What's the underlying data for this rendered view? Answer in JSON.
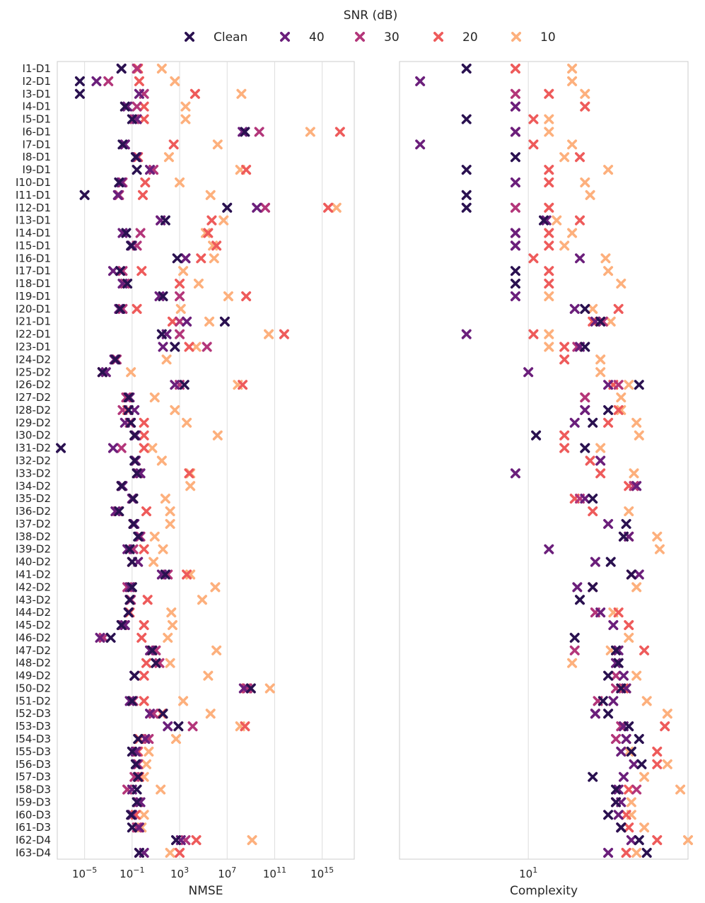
{
  "chart_data": {
    "type": "scatter",
    "legend": {
      "title": "SNR (dB)",
      "placement": "top-center",
      "entries": [
        {
          "name": "Clean",
          "color": "#2a1150"
        },
        {
          "name": "40",
          "color": "#6b1f7b"
        },
        {
          "name": "30",
          "color": "#b3367a"
        },
        {
          "name": "20",
          "color": "#ee5b5b"
        },
        {
          "name": "10",
          "color": "#fdb07d"
        }
      ]
    },
    "marker": "x",
    "categories": [
      "I1-D1",
      "I2-D1",
      "I3-D1",
      "I4-D1",
      "I5-D1",
      "I6-D1",
      "I7-D1",
      "I8-D1",
      "I9-D1",
      "I10-D1",
      "I11-D1",
      "I12-D1",
      "I13-D1",
      "I14-D1",
      "I15-D1",
      "I16-D1",
      "I17-D1",
      "I18-D1",
      "I19-D1",
      "I20-D1",
      "I21-D1",
      "I22-D1",
      "I23-D1",
      "I24-D2",
      "I25-D2",
      "I26-D2",
      "I27-D2",
      "I28-D2",
      "I29-D2",
      "I30-D2",
      "I31-D2",
      "I32-D2",
      "I33-D2",
      "I34-D2",
      "I35-D2",
      "I36-D2",
      "I37-D2",
      "I38-D2",
      "I39-D2",
      "I40-D2",
      "I41-D2",
      "I42-D2",
      "I43-D2",
      "I44-D2",
      "I45-D2",
      "I46-D2",
      "I47-D2",
      "I48-D2",
      "I49-D2",
      "I50-D2",
      "I51-D2",
      "I52-D3",
      "I53-D3",
      "I54-D3",
      "I55-D3",
      "I56-D3",
      "I57-D3",
      "I58-D3",
      "I59-D3",
      "I60-D3",
      "I61-D3",
      "I62-D4",
      "I63-D4"
    ],
    "subplots": [
      {
        "xlabel": "NMSE",
        "xscale": "log",
        "xlim_log10": [
          -7.3,
          17.7
        ],
        "grid": "vertical",
        "xticks": [
          {
            "base": "10",
            "exp": "−5",
            "value": -5
          },
          {
            "base": "10",
            "exp": "−1",
            "value": -1
          },
          {
            "base": "10",
            "exp": "3",
            "value": 3
          },
          {
            "base": "10",
            "exp": "7",
            "value": 7
          },
          {
            "base": "10",
            "exp": "11",
            "value": 11
          },
          {
            "base": "10",
            "exp": "15",
            "value": 15
          }
        ],
        "series_log10": {
          "Clean": [
            -1.9,
            -5.4,
            -5.4,
            -1.6,
            -1.0,
            8.5,
            -1.8,
            -0.7,
            -0.6,
            -2.1,
            -5.0,
            7.0,
            1.8,
            -1.5,
            -1.1,
            2.8,
            -2.0,
            -1.4,
            1.6,
            -2.0,
            6.8,
            1.5,
            2.6,
            -2.4,
            -3.5,
            3.4,
            -1.3,
            -1.3,
            -1.1,
            -0.8,
            -7.0,
            -0.8,
            -0.6,
            -1.9,
            -0.9,
            -2.1,
            -0.9,
            -0.5,
            -1.2,
            -1.0,
            1.8,
            -1.0,
            -1.2,
            -1.3,
            -1.9,
            -2.8,
            0.7,
            1.0,
            -0.8,
            9.0,
            -1.0,
            1.6,
            2.9,
            -0.5,
            -1.0,
            -0.7,
            -0.5,
            -0.6,
            -0.6,
            -1.1,
            -1.0,
            2.7,
            -0.4
          ],
          "40": [
            -1.9,
            -4.0,
            -0.4,
            -1.4,
            -0.6,
            8.3,
            -1.6,
            -0.6,
            0.5,
            -1.9,
            -2.2,
            9.5,
            1.4,
            -1.8,
            -1.0,
            3.5,
            -2.6,
            -1.8,
            1.3,
            -2.1,
            3.6,
            1.9,
            1.6,
            -2.5,
            -3.2,
            2.6,
            -1.2,
            -0.8,
            -1.6,
            -0.7,
            -2.6,
            -0.7,
            -0.3,
            -1.8,
            -1.0,
            -2.4,
            -0.8,
            -0.4,
            -1.4,
            -0.5,
            1.5,
            -1.2,
            -1.2,
            -1.3,
            -1.6,
            -3.7,
            0.5,
            1.0,
            -0.8,
            8.4,
            -1.2,
            0.5,
            2.0,
            0.1,
            -0.7,
            -0.6,
            -0.5,
            -1.0,
            -0.3,
            -1.0,
            -0.4,
            3.1,
            0.0
          ],
          "30": [
            -0.6,
            -3.0,
            0.0,
            -0.6,
            -0.8,
            9.7,
            -1.6,
            -0.6,
            0.8,
            -1.8,
            -2.1,
            10.2,
            1.4,
            -0.3,
            -0.6,
            3.5,
            -1.8,
            -1.6,
            3.0,
            -1.8,
            3.0,
            3.0,
            5.3,
            -2.3,
            -3.5,
            3.0,
            -1.5,
            -1.8,
            -1.2,
            -0.8,
            -1.9,
            -0.7,
            -0.5,
            -1.9,
            -1.0,
            -2.2,
            -0.9,
            -0.3,
            -0.9,
            -1.0,
            2.0,
            -1.4,
            -1.1,
            -1.3,
            -1.8,
            -3.4,
            1.0,
            1.3,
            -0.8,
            8.7,
            -0.9,
            0.8,
            4.1,
            0.4,
            -0.6,
            -0.5,
            -0.8,
            -1.4,
            -0.5,
            -1.0,
            -0.6,
            3.5,
            -0.4
          ],
          "20": [
            -0.5,
            -0.4,
            4.3,
            0.0,
            0.0,
            16.5,
            2.5,
            -0.5,
            8.6,
            0.1,
            -0.1,
            15.5,
            5.7,
            5.4,
            6.1,
            4.8,
            -0.2,
            3.0,
            8.6,
            -0.6,
            2.4,
            11.8,
            3.8,
            -2.4,
            -3.5,
            8.3,
            -1.4,
            -1.4,
            0.0,
            0.0,
            0.0,
            -0.7,
            3.8,
            -1.9,
            -0.9,
            0.2,
            -0.9,
            -0.4,
            0.0,
            -1.0,
            3.6,
            -1.1,
            0.3,
            -1.2,
            0.0,
            -0.2,
            0.6,
            0.2,
            0.0,
            8.6,
            0.0,
            1.5,
            8.5,
            -0.4,
            -0.5,
            -0.5,
            -0.4,
            -1.4,
            -0.5,
            -0.7,
            -0.5,
            4.4,
            3.0
          ],
          "10": [
            1.5,
            2.6,
            8.2,
            3.5,
            3.5,
            14.0,
            6.2,
            2.1,
            8.1,
            3.0,
            5.6,
            16.2,
            6.7,
            5.2,
            5.8,
            5.9,
            3.3,
            4.6,
            7.1,
            3.1,
            5.5,
            10.5,
            4.4,
            1.9,
            -1.1,
            7.9,
            0.9,
            2.6,
            3.6,
            6.2,
            0.7,
            1.5,
            3.9,
            3.9,
            1.8,
            2.2,
            2.2,
            0.9,
            1.6,
            0.8,
            3.9,
            6.0,
            4.9,
            2.3,
            2.4,
            2.0,
            6.1,
            2.2,
            5.4,
            10.6,
            3.3,
            5.6,
            8.1,
            2.7,
            0.4,
            0.2,
            0.0,
            1.4,
            -0.5,
            0.0,
            -0.2,
            9.1,
            2.2
          ]
        }
      },
      {
        "xlabel": "Complexity",
        "xscale": "log",
        "xlim_log10": [
          0.5,
          1.62
        ],
        "grid": "vertical",
        "xticks": [
          {
            "base": "10",
            "exp": "1",
            "value": 1
          }
        ],
        "series_log10": {
          "Clean": [
            0.76,
            null,
            null,
            null,
            0.76,
            null,
            null,
            0.95,
            0.76,
            null,
            0.76,
            0.76,
            1.06,
            null,
            null,
            null,
            0.95,
            0.95,
            null,
            1.22,
            1.28,
            null,
            1.22,
            null,
            null,
            1.43,
            null,
            1.31,
            1.25,
            1.03,
            1.22,
            null,
            null,
            null,
            1.25,
            null,
            1.38,
            1.37,
            null,
            1.32,
            1.4,
            1.25,
            1.2,
            null,
            null,
            1.18,
            1.34,
            1.35,
            1.31,
            1.36,
            1.29,
            1.31,
            1.39,
            1.43,
            1.4,
            1.44,
            1.25,
            1.34,
            1.34,
            1.31,
            1.36,
            1.43,
            1.46
          ],
          "40": [
            null,
            0.58,
            null,
            0.95,
            null,
            0.95,
            0.58,
            null,
            null,
            0.95,
            null,
            null,
            1.07,
            0.95,
            0.95,
            1.2,
            null,
            null,
            0.95,
            1.18,
            1.26,
            0.76,
            1.2,
            null,
            1.0,
            1.31,
            null,
            1.22,
            1.18,
            null,
            null,
            1.28,
            0.95,
            1.42,
            1.22,
            null,
            1.31,
            1.39,
            1.08,
            1.26,
            1.43,
            1.19,
            null,
            1.28,
            1.33,
            null,
            1.35,
            1.34,
            1.37,
            1.38,
            1.33,
            1.26,
            1.37,
            1.38,
            1.36,
            1.41,
            1.37,
            1.35,
            1.36,
            1.35,
            1.36,
            1.4,
            1.31
          ],
          "30": [
            null,
            null,
            0.95,
            0.95,
            null,
            0.95,
            null,
            null,
            null,
            null,
            null,
            0.95,
            null,
            0.95,
            0.95,
            null,
            null,
            null,
            null,
            null,
            1.29,
            null,
            1.19,
            null,
            null,
            1.35,
            1.22,
            1.22,
            null,
            null,
            null,
            null,
            null,
            1.41,
            1.2,
            null,
            null,
            1.37,
            null,
            null,
            null,
            null,
            null,
            1.26,
            null,
            null,
            1.18,
            1.35,
            1.34,
            1.34,
            1.27,
            1.26,
            1.36,
            1.34,
            null,
            null,
            null,
            1.42,
            1.34,
            null,
            1.36,
            null,
            null
          ],
          "20": [
            0.95,
            null,
            1.08,
            1.22,
            1.02,
            null,
            1.02,
            1.2,
            1.08,
            1.08,
            null,
            1.08,
            1.2,
            1.08,
            1.08,
            1.02,
            1.08,
            1.08,
            null,
            1.35,
            1.25,
            1.02,
            1.14,
            1.14,
            null,
            1.33,
            1.22,
            1.35,
            1.31,
            1.14,
            1.14,
            1.24,
            1.28,
            1.39,
            1.18,
            1.25,
            null,
            1.39,
            null,
            null,
            1.4,
            1.25,
            null,
            1.35,
            1.39,
            null,
            1.45,
            null,
            null,
            1.37,
            null,
            null,
            1.53,
            1.38,
            1.5,
            1.5,
            null,
            1.39,
            1.34,
            1.38,
            1.39,
            1.5,
            1.38
          ],
          "10": [
            1.17,
            1.17,
            1.22,
            1.22,
            1.08,
            1.08,
            1.17,
            1.14,
            1.31,
            1.22,
            1.24,
            null,
            1.11,
            1.17,
            1.14,
            1.3,
            1.31,
            1.36,
            1.08,
            1.25,
            1.32,
            1.08,
            1.08,
            1.28,
            1.28,
            1.39,
            1.36,
            1.36,
            1.42,
            1.43,
            1.28,
            null,
            1.41,
            1.41,
            null,
            1.39,
            null,
            1.5,
            1.51,
            null,
            null,
            1.42,
            null,
            1.33,
            null,
            1.39,
            1.32,
            1.17,
            1.42,
            1.38,
            1.46,
            1.54,
            null,
            null,
            1.39,
            1.54,
            1.45,
            1.59,
            1.4,
            1.4,
            1.45,
            1.62,
            1.42
          ]
        }
      }
    ]
  }
}
